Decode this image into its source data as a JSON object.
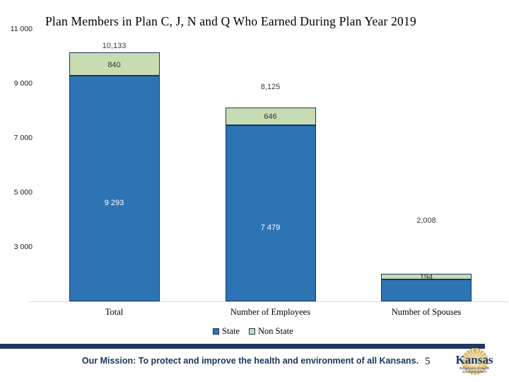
{
  "chart_data": {
    "type": "bar",
    "stacked": true,
    "title": "Plan Members in Plan C, J, N and Q Who Earned During Plan Year 2019",
    "categories": [
      "Total",
      "Number of Employees",
      "Number of Spouses"
    ],
    "series": [
      {
        "name": "State",
        "color": "#2E74B5",
        "values": [
          9293,
          7479,
          1814
        ],
        "labels": [
          "9 293",
          "7 479",
          ""
        ]
      },
      {
        "name": "Non State",
        "color": "#C8DCB2",
        "values": [
          840,
          646,
          194
        ],
        "labels": [
          "840",
          "646",
          "194"
        ]
      }
    ],
    "totals": {
      "values": [
        10133,
        8125,
        2008
      ],
      "labels": [
        "10,133",
        "8,125",
        "2,008"
      ]
    },
    "y_axis": {
      "min": 1000,
      "max": 11000,
      "ticks": [
        {
          "value": 11000,
          "label": "11 000"
        },
        {
          "value": 9000,
          "label": "9 000"
        },
        {
          "value": 7000,
          "label": "7 000"
        },
        {
          "value": 5000,
          "label": "5 000"
        },
        {
          "value": 3000,
          "label": "3 000"
        }
      ]
    },
    "gridlines": false,
    "legend_position": "bottom",
    "bar_border_color": "#17375E",
    "axis_line_color": "#D9D9D9"
  },
  "footer": {
    "mission": "Our Mission: To protect and improve the health and environment of all Kansans.",
    "page_number": "5",
    "bar_color": "#1F3864",
    "logo": {
      "name": "Kansas",
      "caption_line1": "Department of Health",
      "caption_line2": "and Environment"
    }
  }
}
